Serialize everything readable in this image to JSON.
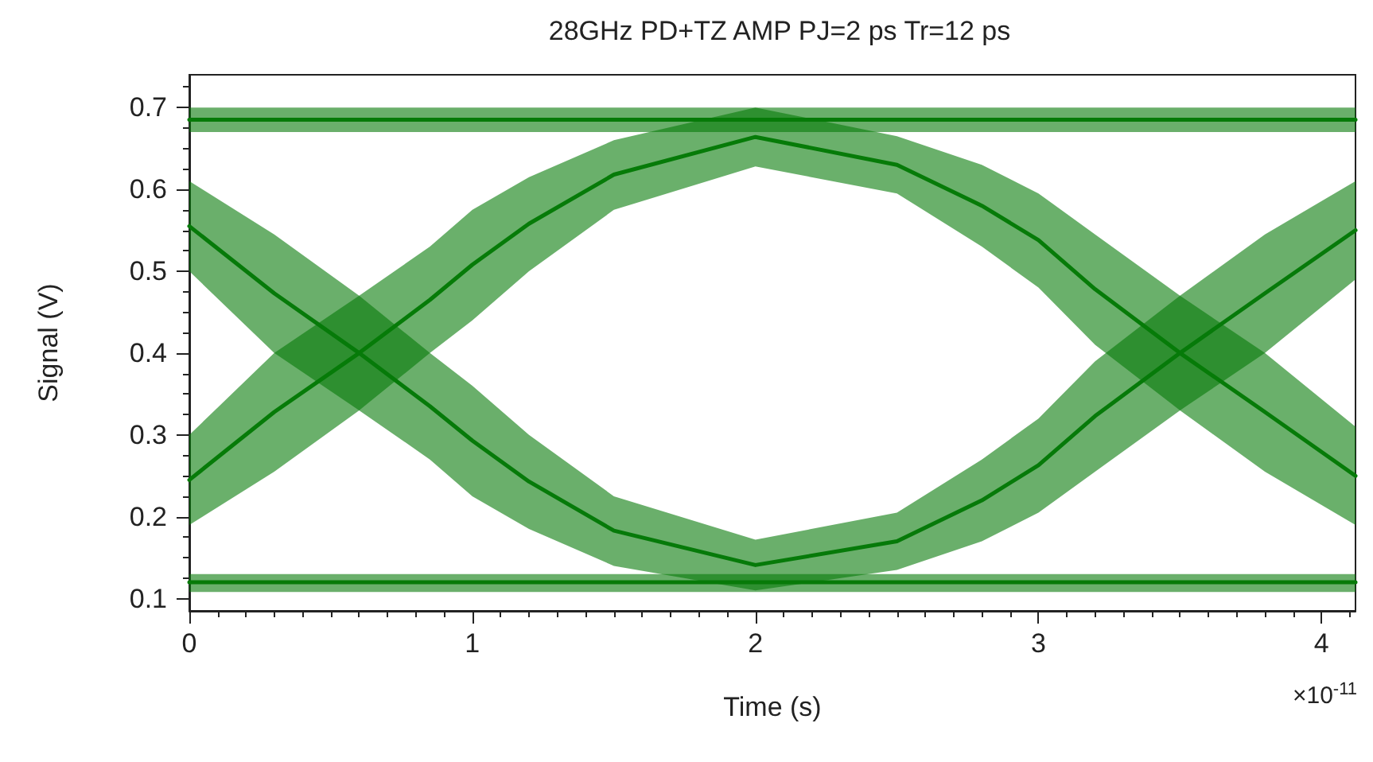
{
  "chart_data": {
    "type": "line",
    "title": "28GHz PD+TZ AMP PJ=2 ps Tr=12 ps",
    "xlabel": "Time (s)",
    "ylabel": "Signal (V)",
    "annotations": [
      "×10$^{-11}$"
    ],
    "xlim": [
      0,
      4.12
    ],
    "ylim": [
      0.085,
      0.74
    ],
    "xticks": [
      0,
      1,
      2,
      3,
      4
    ],
    "yticks": [
      0.1,
      0.2,
      0.3,
      0.4,
      0.5,
      0.6,
      0.7
    ],
    "grid": false,
    "legend": false,
    "marker": "none",
    "line_style": "solid",
    "series": [
      {
        "color": "#067a08",
        "x": [
          0,
          1,
          2,
          3,
          4.12
        ],
        "values": [
          0.685,
          0.685,
          0.685,
          0.685,
          0.685
        ],
        "lower": [
          0.67,
          0.67,
          0.67,
          0.67,
          0.67
        ],
        "upper": [
          0.7,
          0.7,
          0.7,
          0.7,
          0.7
        ]
      },
      {
        "color": "#077a08",
        "x": [
          0,
          1,
          2,
          3,
          4.12
        ],
        "values": [
          0.12,
          0.12,
          0.12,
          0.12,
          0.12
        ],
        "lower": [
          0.108,
          0.108,
          0.108,
          0.108,
          0.108
        ],
        "upper": [
          0.13,
          0.13,
          0.13,
          0.13,
          0.13
        ]
      },
      {
        "color": "#067b08",
        "x": [
          0,
          0.3,
          0.6,
          0.85,
          1.0,
          1.2,
          1.5,
          2.0,
          2.5,
          2.8,
          3.0,
          3.2,
          3.5,
          3.8,
          4.12
        ],
        "values": [
          0.245,
          0.328,
          0.4,
          0.465,
          0.508,
          0.558,
          0.618,
          0.664,
          0.63,
          0.58,
          0.538,
          0.478,
          0.4,
          0.328,
          0.25
        ],
        "lower": [
          0.19,
          0.255,
          0.33,
          0.4,
          0.44,
          0.5,
          0.575,
          0.628,
          0.595,
          0.53,
          0.48,
          0.41,
          0.33,
          0.255,
          0.19
        ],
        "upper": [
          0.3,
          0.4,
          0.47,
          0.53,
          0.575,
          0.615,
          0.66,
          0.7,
          0.665,
          0.63,
          0.595,
          0.545,
          0.47,
          0.4,
          0.31
        ]
      },
      {
        "color": "#067a09",
        "x": [
          0,
          0.3,
          0.6,
          0.85,
          1.0,
          1.2,
          1.5,
          2.0,
          2.5,
          2.8,
          3.0,
          3.2,
          3.5,
          3.8,
          4.12
        ],
        "values": [
          0.555,
          0.473,
          0.4,
          0.335,
          0.293,
          0.243,
          0.183,
          0.141,
          0.17,
          0.22,
          0.263,
          0.323,
          0.4,
          0.473,
          0.55
        ],
        "lower": [
          0.5,
          0.4,
          0.33,
          0.27,
          0.225,
          0.185,
          0.14,
          0.11,
          0.135,
          0.17,
          0.205,
          0.255,
          0.33,
          0.4,
          0.49
        ],
        "upper": [
          0.61,
          0.545,
          0.47,
          0.4,
          0.36,
          0.3,
          0.225,
          0.172,
          0.205,
          0.27,
          0.32,
          0.39,
          0.47,
          0.545,
          0.61
        ]
      }
    ]
  }
}
